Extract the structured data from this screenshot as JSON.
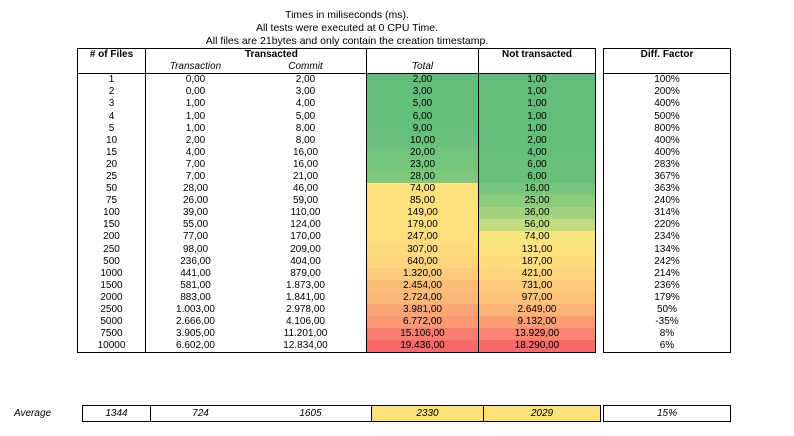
{
  "header": {
    "line1": "Times in miliseconds (ms).",
    "line2": "All tests were executed at 0 CPU Time.",
    "line3": "All files are 21bytes and only contain the creation timestamp."
  },
  "columns": {
    "files": "# of Files",
    "transacted": "Transacted",
    "transaction": "Transaction",
    "commit": "Commit",
    "total": "Total",
    "not_transacted": "Not transacted",
    "diff_factor": "Diff. Factor"
  },
  "rows": [
    {
      "files": "1",
      "transaction": "0,00",
      "commit": "2,00",
      "total": "2,00",
      "not_transacted": "1,00",
      "diff": "100%",
      "total_color": "#63be7b",
      "not_color": "#63be7b"
    },
    {
      "files": "2",
      "transaction": "0,00",
      "commit": "3,00",
      "total": "3,00",
      "not_transacted": "1,00",
      "diff": "200%",
      "total_color": "#63be7b",
      "not_color": "#63be7b"
    },
    {
      "files": "3",
      "transaction": "1,00",
      "commit": "4,00",
      "total": "5,00",
      "not_transacted": "1,00",
      "diff": "400%",
      "total_color": "#64bf7b",
      "not_color": "#63be7b"
    },
    {
      "files": "4",
      "transaction": "1,00",
      "commit": "5,00",
      "total": "6,00",
      "not_transacted": "1,00",
      "diff": "500%",
      "total_color": "#64bf7b",
      "not_color": "#63be7b"
    },
    {
      "files": "5",
      "transaction": "1,00",
      "commit": "8,00",
      "total": "9,00",
      "not_transacted": "1,00",
      "diff": "800%",
      "total_color": "#66c07c",
      "not_color": "#63be7b"
    },
    {
      "files": "10",
      "transaction": "2,00",
      "commit": "8,00",
      "total": "10,00",
      "not_transacted": "2,00",
      "diff": "400%",
      "total_color": "#67c07c",
      "not_color": "#64bf7b"
    },
    {
      "files": "15",
      "transaction": "4,00",
      "commit": "16,00",
      "total": "20,00",
      "not_transacted": "4,00",
      "diff": "400%",
      "total_color": "#72c47d",
      "not_color": "#66c07c"
    },
    {
      "files": "20",
      "transaction": "7,00",
      "commit": "16,00",
      "total": "23,00",
      "not_transacted": "6,00",
      "diff": "283%",
      "total_color": "#76c57d",
      "not_color": "#68c07c"
    },
    {
      "files": "25",
      "transaction": "7,00",
      "commit": "21,00",
      "total": "28,00",
      "not_transacted": "6,00",
      "diff": "367%",
      "total_color": "#80c87e",
      "not_color": "#68c07c"
    },
    {
      "files": "50",
      "transaction": "28,00",
      "commit": "46,00",
      "total": "74,00",
      "not_transacted": "16,00",
      "diff": "363%",
      "total_color": "#fde180",
      "not_color": "#78c67d"
    },
    {
      "files": "75",
      "transaction": "26,00",
      "commit": "59,00",
      "total": "85,00",
      "not_transacted": "25,00",
      "diff": "240%",
      "total_color": "#fde180",
      "not_color": "#8ccb7e"
    },
    {
      "files": "100",
      "transaction": "39,00",
      "commit": "110,00",
      "total": "149,00",
      "not_transacted": "36,00",
      "diff": "314%",
      "total_color": "#fee280",
      "not_color": "#a3d17f"
    },
    {
      "files": "150",
      "transaction": "55,00",
      "commit": "124,00",
      "total": "179,00",
      "not_transacted": "56,00",
      "diff": "220%",
      "total_color": "#fee280",
      "not_color": "#c4da80"
    },
    {
      "files": "200",
      "transaction": "77,00",
      "commit": "170,00",
      "total": "247,00",
      "not_transacted": "74,00",
      "diff": "234%",
      "total_color": "#fede7f",
      "not_color": "#f6e480"
    },
    {
      "files": "250",
      "transaction": "98,00",
      "commit": "209,00",
      "total": "307,00",
      "not_transacted": "131,00",
      "diff": "134%",
      "total_color": "#fedb7e",
      "not_color": "#fee180"
    },
    {
      "files": "500",
      "transaction": "236,00",
      "commit": "404,00",
      "total": "640,00",
      "not_transacted": "187,00",
      "diff": "242%",
      "total_color": "#fed57d",
      "not_color": "#fedd7f"
    },
    {
      "files": "1000",
      "transaction": "441,00",
      "commit": "879,00",
      "total": "1.320,00",
      "not_transacted": "421,00",
      "diff": "214%",
      "total_color": "#fdcb7b",
      "not_color": "#fed47d"
    },
    {
      "files": "1500",
      "transaction": "581,00",
      "commit": "1.873,00",
      "total": "2.454,00",
      "not_transacted": "731,00",
      "diff": "236%",
      "total_color": "#fcbc79",
      "not_color": "#fdcb7b"
    },
    {
      "files": "2000",
      "transaction": "883,00",
      "commit": "1.841,00",
      "total": "2.724,00",
      "not_transacted": "977,00",
      "diff": "179%",
      "total_color": "#fcb878",
      "not_color": "#fdc37a"
    },
    {
      "files": "2500",
      "transaction": "1.003,00",
      "commit": "2.978,00",
      "total": "3.981,00",
      "not_transacted": "2.649,00",
      "diff": "50%",
      "total_color": "#fba676",
      "not_color": "#fcb377"
    },
    {
      "files": "5000",
      "transaction": "2.666,00",
      "commit": "4.106,00",
      "total": "6.772,00",
      "not_transacted": "9.132,00",
      "diff": "-35%",
      "total_color": "#fa9a74",
      "not_color": "#fb9d75"
    },
    {
      "files": "7500",
      "transaction": "3.905,00",
      "commit": "11.201,00",
      "total": "15.106,00",
      "not_transacted": "13.929,00",
      "diff": "8%",
      "total_color": "#f97e6f",
      "not_color": "#f98570"
    },
    {
      "files": "10000",
      "transaction": "6.602,00",
      "commit": "12.834,00",
      "total": "19.436,00",
      "not_transacted": "18.290,00",
      "diff": "6%",
      "total_color": "#f8696b",
      "not_color": "#f8696b"
    }
  ],
  "average": {
    "label": "Average",
    "files": "1344",
    "transaction": "724",
    "commit": "1605",
    "total": "2330",
    "not_transacted": "2029",
    "diff": "15%"
  }
}
